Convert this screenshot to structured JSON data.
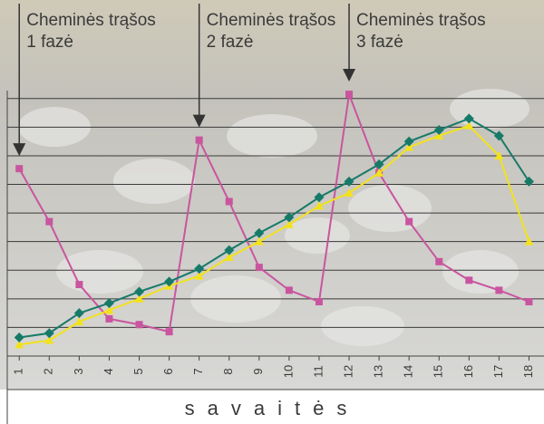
{
  "chart_data": {
    "type": "line",
    "x": [
      1,
      2,
      3,
      4,
      5,
      6,
      7,
      8,
      9,
      10,
      11,
      12,
      13,
      14,
      15,
      16,
      17,
      18
    ],
    "xlim": [
      0.6,
      18.5
    ],
    "ylim": [
      0,
      9.5
    ],
    "yticks": [
      1,
      2,
      3,
      4,
      5,
      6,
      7,
      8,
      9
    ],
    "grid": true,
    "xlabel": "savaitės",
    "series": [
      {
        "color": "#c9559f",
        "marker": "square",
        "values": [
          6.55,
          4.7,
          2.5,
          1.3,
          1.1,
          0.85,
          7.55,
          5.4,
          3.1,
          2.3,
          1.9,
          9.15,
          6.4,
          4.7,
          3.3,
          2.65,
          2.3,
          1.9
        ]
      },
      {
        "color": "#f2e21c",
        "marker": "triangle",
        "values": [
          0.4,
          0.55,
          1.2,
          1.6,
          2.0,
          2.45,
          2.8,
          3.45,
          4.0,
          4.6,
          5.25,
          5.7,
          6.4,
          7.3,
          7.7,
          8.05,
          7.0,
          4.0
        ]
      },
      {
        "color": "#177a68",
        "marker": "diamond",
        "values": [
          0.65,
          0.8,
          1.5,
          1.85,
          2.25,
          2.6,
          3.05,
          3.7,
          4.3,
          4.85,
          5.55,
          6.1,
          6.7,
          7.5,
          7.9,
          8.3,
          7.7,
          6.1
        ]
      }
    ],
    "annotations": [
      {
        "x": 1,
        "lines": [
          "Cheminės trąšos",
          "1 fazė"
        ]
      },
      {
        "x": 7,
        "lines": [
          "Cheminės trąšos",
          "2 fazė"
        ]
      },
      {
        "x": 12,
        "lines": [
          "Cheminės trąšos",
          "3 fazė"
        ]
      }
    ]
  }
}
